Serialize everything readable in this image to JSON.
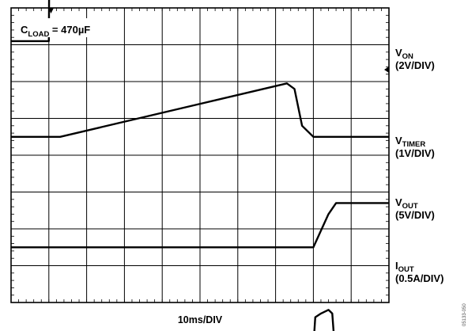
{
  "chart_data": {
    "type": "line",
    "title": "",
    "annotation": {
      "main": "C",
      "sub": "LOAD",
      "rest": " = 470µF"
    },
    "xlabel": "10ms/DIV",
    "x_divisions": 10,
    "y_divisions": 8,
    "x_unit": "ms",
    "grid": true,
    "figure_id": "05133-050",
    "series": [
      {
        "name_main": "V",
        "name_sub": "ON",
        "scale": "(2V/DIV)",
        "volts_per_div": 2,
        "ground_div": 0.9,
        "points": [
          [
            0,
            0
          ],
          [
            10,
            0
          ],
          [
            10.1,
            4
          ],
          [
            100,
            4
          ]
        ]
      },
      {
        "name_main": "V",
        "name_sub": "TIMER",
        "scale": "(1V/DIV)",
        "volts_per_div": 1,
        "ground_div": 3.5,
        "points": [
          [
            0,
            0
          ],
          [
            13,
            0
          ],
          [
            73,
            1.45
          ],
          [
            75,
            1.3
          ],
          [
            77,
            0.3
          ],
          [
            80,
            0
          ],
          [
            100,
            0
          ]
        ]
      },
      {
        "name_main": "V",
        "name_sub": "OUT",
        "scale": "(5V/DIV)",
        "volts_per_div": 5,
        "ground_div": 6.5,
        "points": [
          [
            0,
            0
          ],
          [
            80,
            0
          ],
          [
            84,
            4.5
          ],
          [
            86,
            6
          ],
          [
            100,
            6
          ]
        ]
      },
      {
        "name_main": "I",
        "name_sub": "OUT",
        "scale": "(0.5A/DIV)",
        "volts_per_div": 0.5,
        "ground_div": 9.2,
        "points": [
          [
            0,
            0
          ],
          [
            80,
            0
          ],
          [
            80.5,
            0.4
          ],
          [
            82,
            0.45
          ],
          [
            84,
            0.5
          ],
          [
            85,
            0.45
          ],
          [
            85.5,
            0.1
          ],
          [
            86,
            0
          ],
          [
            100,
            0
          ]
        ]
      }
    ]
  }
}
